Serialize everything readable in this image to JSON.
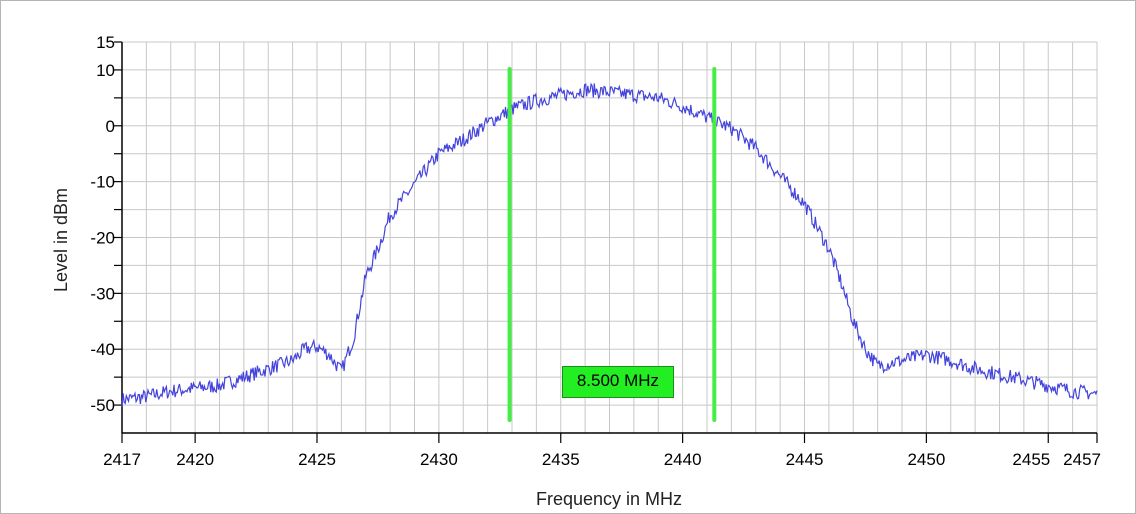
{
  "colors": {
    "trace": "#4444dd",
    "markers": "#44ee44",
    "grid": "#c8c8c8",
    "axis": "#000000"
  },
  "chart_data": {
    "type": "line",
    "title": "",
    "xlabel": "Frequency in MHz",
    "ylabel": "Level in dBm",
    "xlim": [
      2417,
      2457
    ],
    "ylim": [
      -55,
      15
    ],
    "x_ticks": [
      2417,
      2420,
      2425,
      2430,
      2435,
      2440,
      2445,
      2450,
      2455,
      2457
    ],
    "x_tick_labels": [
      "2417",
      "2420",
      "2425",
      "2430",
      "2435",
      "2440",
      "2445",
      "2450",
      "2455",
      "2457"
    ],
    "y_ticks": [
      -50,
      -40,
      -30,
      -20,
      -10,
      0,
      10,
      15
    ],
    "y_tick_labels": [
      "-50",
      "-40",
      "-30",
      "-20",
      "-10",
      "0",
      "10",
      "15"
    ],
    "grid": true,
    "series": [
      {
        "x": [
          2417,
          2418,
          2419,
          2420,
          2421,
          2422,
          2423,
          2424,
          2424.5,
          2425,
          2425.5,
          2426,
          2426.5,
          2427,
          2427.5,
          2428,
          2429,
          2430,
          2431,
          2432,
          2433,
          2434,
          2435,
          2436,
          2437,
          2438,
          2439,
          2440,
          2441,
          2441.5,
          2442,
          2443,
          2444,
          2445,
          2445.5,
          2446,
          2446.5,
          2447,
          2447.5,
          2448,
          2449,
          2450,
          2451,
          2452,
          2453,
          2454,
          2455,
          2456,
          2457
        ],
        "y": [
          -49,
          -48.5,
          -47.5,
          -47,
          -46.5,
          -45,
          -43.5,
          -42,
          -40,
          -39.5,
          -41,
          -44,
          -38,
          -27,
          -22,
          -16,
          -10.5,
          -5,
          -2.5,
          0.5,
          3,
          4.5,
          5.5,
          6.5,
          6,
          5.5,
          5,
          3.5,
          1.5,
          0.5,
          -0.5,
          -4,
          -9,
          -14,
          -18,
          -22,
          -28,
          -35,
          -40,
          -43,
          -42,
          -41,
          -42,
          -43.5,
          -44.5,
          -45.5,
          -46.5,
          -47.5,
          -48
        ]
      }
    ],
    "markers": {
      "x": [
        2432.9,
        2441.3
      ],
      "label": "8.500 MHz"
    }
  }
}
